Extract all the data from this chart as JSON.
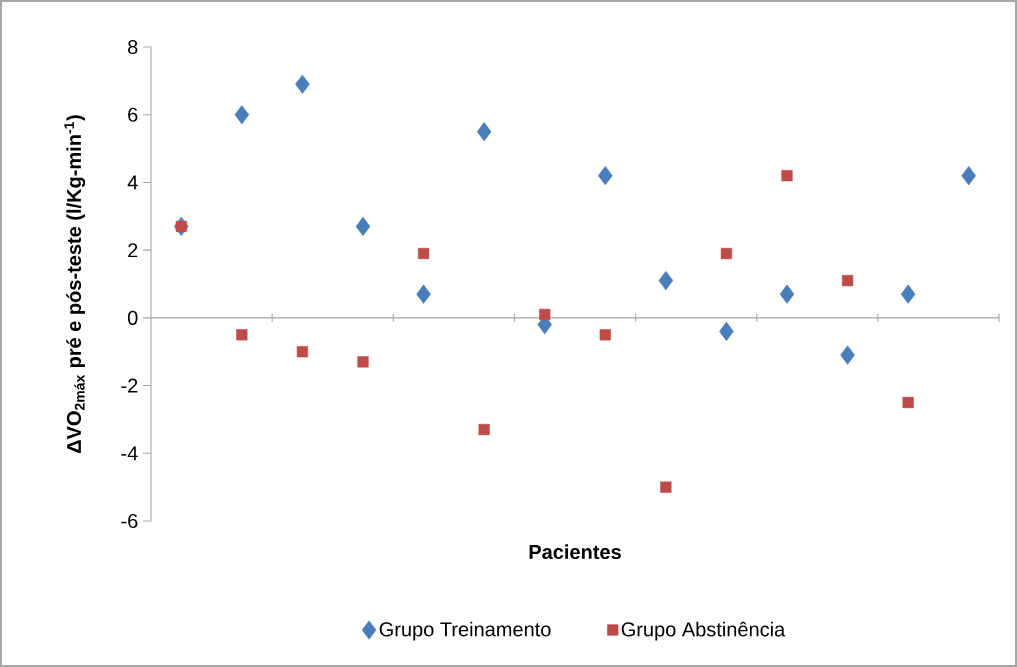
{
  "chart_data": {
    "type": "scatter",
    "ylabel": "ΔVO$_{2máx}$ pré e pós-teste (l/Kg-min$^{-1}$)",
    "xlabel": "Pacientes",
    "categories": [
      null,
      null,
      null,
      null,
      null,
      null,
      null,
      null,
      null,
      null,
      null,
      null,
      null,
      null
    ],
    "ylim": [
      -6,
      8
    ],
    "yticks": [
      -6,
      -4,
      -2,
      0,
      2,
      4,
      6,
      8
    ],
    "legend": "bottom",
    "series": [
      {
        "name": "Grupo Treinamento",
        "color": "#4a7ebb",
        "marker": "diamond",
        "values": [
          2.7,
          6.0,
          6.9,
          2.7,
          0.7,
          5.5,
          -0.2,
          4.2,
          1.1,
          -0.4,
          0.7,
          -1.1,
          0.7,
          4.2
        ]
      },
      {
        "name": "Grupo Abstinência",
        "color": "#be4b48",
        "marker": "square",
        "values": [
          2.7,
          -0.5,
          -1.0,
          -1.3,
          1.9,
          -3.3,
          0.1,
          -0.5,
          -5.0,
          1.9,
          4.2,
          1.1,
          -2.5,
          null
        ]
      }
    ]
  }
}
